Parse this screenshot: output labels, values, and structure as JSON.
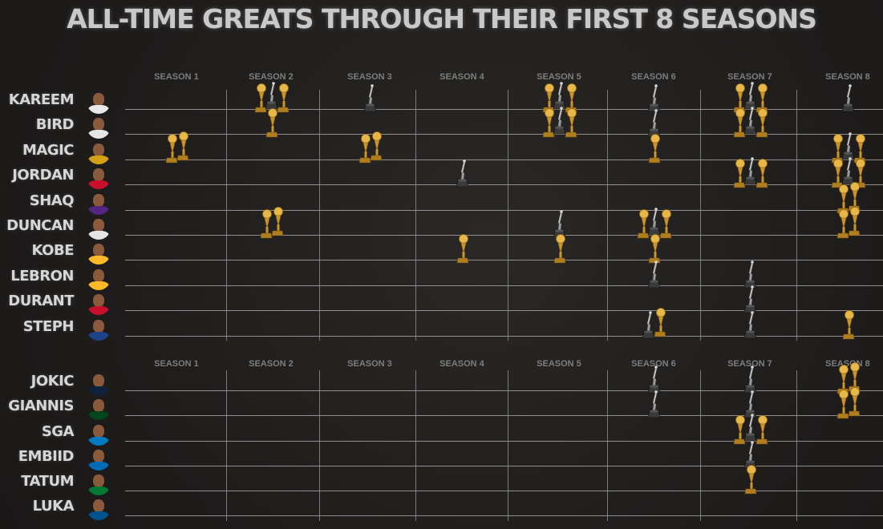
{
  "title": "ALL-TIME GREATS THROUGH THEIR FIRST 8 SEASONS",
  "seasons": [
    "SEASON 1",
    "SEASON 2",
    "SEASON 3",
    "SEASON 4",
    "SEASON 5",
    "SEASON 6",
    "SEASON 7",
    "SEASON 8"
  ],
  "colors": {
    "trophy": "#c9952c",
    "mvp": "#3a3a3a",
    "background": "#222020",
    "name": "#d6d6d6"
  },
  "sections": [
    {
      "name": "all-time-greats",
      "players": [
        {
          "name": "KAREEM",
          "jersey": "#e9e9e9",
          "awards": [
            [],
            [
              {
                "type": "trophy"
              },
              {
                "type": "mvp"
              },
              {
                "type": "trophy"
              }
            ],
            [
              {
                "type": "mvp"
              }
            ],
            [],
            [
              {
                "type": "trophy"
              },
              {
                "type": "mvp"
              },
              {
                "type": "trophy"
              }
            ],
            [
              {
                "type": "mvp"
              }
            ],
            [
              {
                "type": "trophy"
              },
              {
                "type": "mvp"
              },
              {
                "type": "trophy"
              }
            ],
            [
              {
                "type": "mvp"
              }
            ]
          ]
        },
        {
          "name": "BIRD",
          "jersey": "#e5e5e5",
          "awards": [
            [],
            [
              {
                "type": "trophy"
              }
            ],
            [],
            [],
            [
              {
                "type": "trophy"
              },
              {
                "type": "mvp"
              },
              {
                "type": "trophy"
              }
            ],
            [
              {
                "type": "mvp"
              }
            ],
            [
              {
                "type": "trophy"
              },
              {
                "type": "mvp"
              },
              {
                "type": "trophy"
              }
            ],
            []
          ]
        },
        {
          "name": "MAGIC",
          "jersey": "#d4a017",
          "awards": [
            [
              {
                "type": "trophy"
              },
              {
                "type": "trophy"
              }
            ],
            [],
            [
              {
                "type": "trophy"
              },
              {
                "type": "trophy"
              }
            ],
            [],
            [],
            [
              {
                "type": "trophy"
              }
            ],
            [],
            [
              {
                "type": "trophy"
              },
              {
                "type": "mvp"
              },
              {
                "type": "trophy"
              }
            ]
          ]
        },
        {
          "name": "JORDAN",
          "jersey": "#c8102e",
          "awards": [
            [],
            [],
            [],
            [
              {
                "type": "mvp"
              }
            ],
            [],
            [],
            [
              {
                "type": "trophy"
              },
              {
                "type": "mvp"
              },
              {
                "type": "trophy"
              }
            ],
            [
              {
                "type": "trophy"
              },
              {
                "type": "mvp"
              },
              {
                "type": "trophy"
              }
            ]
          ]
        },
        {
          "name": "SHAQ",
          "jersey": "#552583",
          "awards": [
            [],
            [],
            [],
            [],
            [],
            [],
            [],
            [
              {
                "type": "trophy"
              },
              {
                "type": "trophy"
              }
            ]
          ]
        },
        {
          "name": "DUNCAN",
          "jersey": "#e5e5e5",
          "awards": [
            [],
            [
              {
                "type": "trophy"
              },
              {
                "type": "trophy"
              }
            ],
            [],
            [],
            [
              {
                "type": "mvp"
              }
            ],
            [
              {
                "type": "trophy"
              },
              {
                "type": "mvp"
              },
              {
                "type": "trophy"
              }
            ],
            [],
            [
              {
                "type": "trophy"
              },
              {
                "type": "trophy"
              }
            ]
          ]
        },
        {
          "name": "KOBE",
          "jersey": "#fdb927",
          "awards": [
            [],
            [],
            [],
            [
              {
                "type": "trophy"
              }
            ],
            [
              {
                "type": "trophy"
              }
            ],
            [
              {
                "type": "trophy"
              }
            ],
            [],
            []
          ]
        },
        {
          "name": "LEBRON",
          "jersey": "#fdb927",
          "awards": [
            [],
            [],
            [],
            [],
            [],
            [
              {
                "type": "mvp"
              }
            ],
            [
              {
                "type": "mvp"
              }
            ],
            []
          ]
        },
        {
          "name": "DURANT",
          "jersey": "#c8102e",
          "awards": [
            [],
            [],
            [],
            [],
            [],
            [],
            [
              {
                "type": "mvp"
              }
            ],
            []
          ]
        },
        {
          "name": "STEPH",
          "jersey": "#1d428a",
          "awards": [
            [],
            [],
            [],
            [],
            [],
            [
              {
                "type": "mvp"
              },
              {
                "type": "trophy"
              }
            ],
            [
              {
                "type": "mvp"
              }
            ],
            [
              {
                "type": "trophy"
              }
            ]
          ]
        }
      ]
    },
    {
      "name": "current-stars",
      "players": [
        {
          "name": "JOKIC",
          "jersey": "#0e2240",
          "awards": [
            [],
            [],
            [],
            [],
            [],
            [
              {
                "type": "mvp"
              }
            ],
            [
              {
                "type": "mvp"
              }
            ],
            [
              {
                "type": "trophy"
              },
              {
                "type": "trophy"
              }
            ]
          ]
        },
        {
          "name": "GIANNIS",
          "jersey": "#00471b",
          "awards": [
            [],
            [],
            [],
            [],
            [],
            [
              {
                "type": "mvp"
              }
            ],
            [
              {
                "type": "mvp"
              }
            ],
            [
              {
                "type": "trophy"
              },
              {
                "type": "trophy"
              }
            ]
          ]
        },
        {
          "name": "SGA",
          "jersey": "#007ac1",
          "awards": [
            [],
            [],
            [],
            [],
            [],
            [],
            [
              {
                "type": "trophy"
              },
              {
                "type": "mvp"
              },
              {
                "type": "trophy"
              }
            ],
            []
          ]
        },
        {
          "name": "EMBIID",
          "jersey": "#006bb6",
          "awards": [
            [],
            [],
            [],
            [],
            [],
            [],
            [
              {
                "type": "mvp"
              }
            ],
            []
          ]
        },
        {
          "name": "TATUM",
          "jersey": "#007a33",
          "awards": [
            [],
            [],
            [],
            [],
            [],
            [],
            [
              {
                "type": "trophy"
              }
            ],
            []
          ]
        },
        {
          "name": "LUKA",
          "jersey": "#00538c",
          "awards": [
            [],
            [],
            [],
            [],
            [],
            [],
            [],
            []
          ]
        }
      ]
    }
  ]
}
